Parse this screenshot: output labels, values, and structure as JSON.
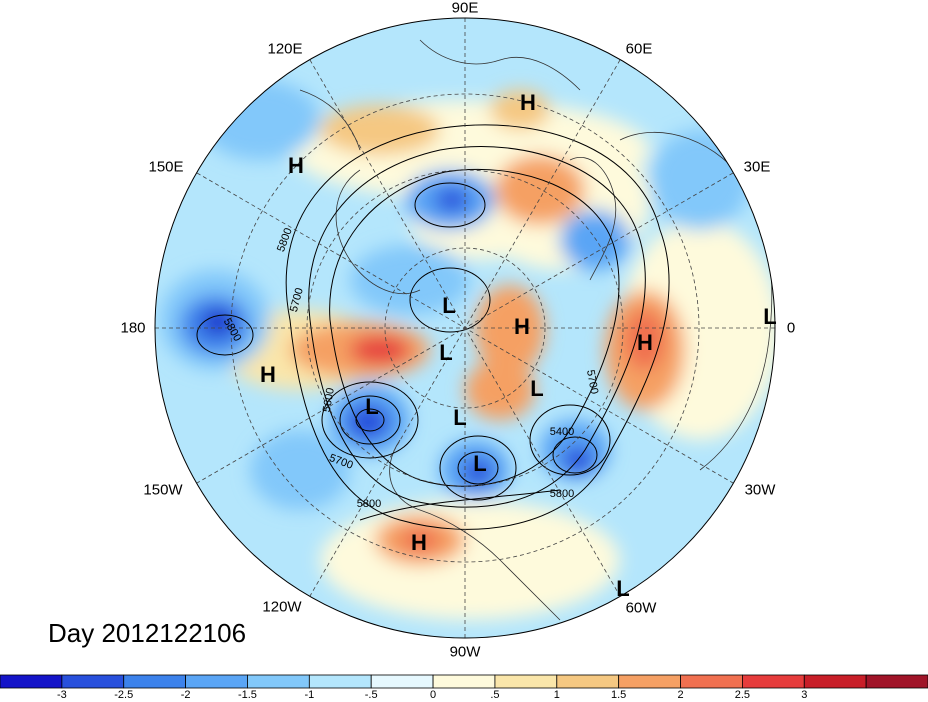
{
  "title": "Day 2012122106",
  "longitude_labels": [
    {
      "id": "90e",
      "text": "90E"
    },
    {
      "id": "60e",
      "text": "60E"
    },
    {
      "id": "30e",
      "text": "30E"
    },
    {
      "id": "0",
      "text": "0"
    },
    {
      "id": "30w",
      "text": "30W"
    },
    {
      "id": "60w",
      "text": "60W"
    },
    {
      "id": "90w",
      "text": "90W"
    },
    {
      "id": "120w",
      "text": "120W"
    },
    {
      "id": "150w",
      "text": "150W"
    },
    {
      "id": "180",
      "text": "180"
    },
    {
      "id": "150e",
      "text": "150E"
    },
    {
      "id": "120e",
      "text": "120E"
    }
  ],
  "pressure_centers": [
    {
      "type": "H"
    },
    {
      "type": "H"
    },
    {
      "type": "H"
    },
    {
      "type": "H"
    },
    {
      "type": "H"
    },
    {
      "type": "H"
    },
    {
      "type": "L"
    },
    {
      "type": "L"
    },
    {
      "type": "L"
    },
    {
      "type": "L"
    },
    {
      "type": "L"
    },
    {
      "type": "L"
    },
    {
      "type": "L"
    },
    {
      "type": "L"
    },
    {
      "type": "L"
    }
  ],
  "contour_labels": [
    "5800",
    "5700",
    "5600",
    "5700",
    "5800",
    "5400",
    "5800",
    "5700",
    "5800"
  ],
  "colorbar": {
    "colors": [
      "#1414c8",
      "#2850dc",
      "#3c82eb",
      "#5aa5f5",
      "#82c8fa",
      "#b4e6fc",
      "#e6f8fe",
      "#fefadc",
      "#fae6aa",
      "#f5c882",
      "#f5a064",
      "#f07050",
      "#e63c3c",
      "#c81e28",
      "#a01428"
    ],
    "labels": [
      "-3",
      "-2.5",
      "-2",
      "-1.5",
      "-1",
      "-.5",
      "0",
      ".5",
      "1",
      "1.5",
      "2",
      "2.5",
      "3"
    ]
  }
}
